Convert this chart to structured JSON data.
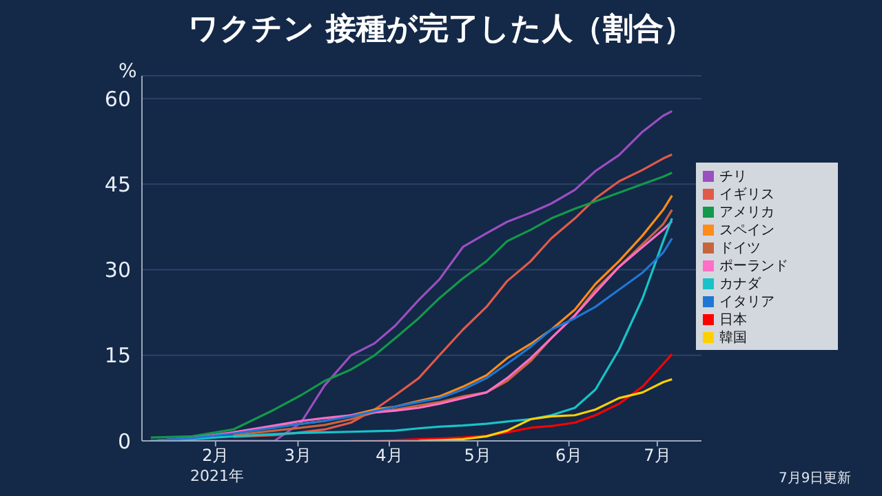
{
  "chart_data": {
    "type": "line",
    "title": "ワクチン 接種が完了した人（割合）",
    "ylabel": "%",
    "x": [
      "2021-01-10",
      "2021-01-24",
      "2021-02-07",
      "2021-02-21",
      "2021-03-02",
      "2021-03-10",
      "2021-03-19",
      "2021-03-27",
      "2021-04-03",
      "2021-04-11",
      "2021-04-18",
      "2021-04-26",
      "2021-05-04",
      "2021-05-11",
      "2021-05-19",
      "2021-05-26",
      "2021-06-03",
      "2021-06-10",
      "2021-06-18",
      "2021-06-26",
      "2021-07-03",
      "2021-07-06"
    ],
    "series": [
      {
        "name": "チリ",
        "color": "#9b4fc0",
        "values": [
          0,
          0,
          0,
          0,
          3.2,
          9.7,
          15,
          17.1,
          20.2,
          24.7,
          28.3,
          34,
          36.4,
          38.4,
          40,
          41.6,
          44,
          47.3,
          50.1,
          54.2,
          57,
          57.8
        ]
      },
      {
        "name": "イギリス",
        "color": "#e05a4a",
        "values": [
          null,
          null,
          0.7,
          1,
          1.5,
          2,
          3.2,
          5.5,
          8,
          11,
          15,
          19.5,
          23.5,
          28,
          31.5,
          35.5,
          39,
          42.5,
          45.5,
          47.5,
          49.5,
          50.2
        ]
      },
      {
        "name": "アメリカ",
        "color": "#12994a",
        "values": [
          0.6,
          0.8,
          2,
          5.5,
          8,
          10.5,
          12.5,
          15,
          18,
          21.5,
          25,
          28.5,
          31.5,
          35,
          37,
          39,
          40.7,
          42,
          43.5,
          45,
          46.3,
          47
        ]
      },
      {
        "name": "スペイン",
        "color": "#ff8c1a",
        "values": [
          null,
          null,
          1.5,
          2.5,
          3,
          3.5,
          4.5,
          5.5,
          6,
          7,
          7.8,
          9.5,
          11.5,
          14.5,
          17,
          19.5,
          23,
          27.5,
          31.5,
          36,
          40.5,
          43
        ]
      },
      {
        "name": "ドイツ",
        "color": "#c8643c",
        "values": [
          null,
          null,
          1,
          1.8,
          2.3,
          2.8,
          3.8,
          5,
          5.5,
          6.2,
          6.8,
          7.8,
          8.5,
          10.5,
          14,
          18,
          22,
          26.5,
          30.5,
          34.5,
          38,
          40.5
        ]
      },
      {
        "name": "ポーランド",
        "color": "#ff6ec7",
        "values": [
          0,
          0.5,
          1.5,
          2.7,
          3.5,
          4,
          4.5,
          5,
          5.3,
          5.8,
          6.5,
          7.5,
          8.5,
          11,
          14.5,
          18,
          22,
          26,
          30.5,
          34,
          37,
          38.5
        ]
      },
      {
        "name": "カナダ",
        "color": "#17c3c8",
        "values": [
          0,
          0.3,
          0.8,
          1.2,
          1.4,
          1.5,
          1.6,
          1.7,
          1.8,
          2.2,
          2.5,
          2.7,
          3,
          3.4,
          3.8,
          4.5,
          5.8,
          9,
          16,
          25,
          35,
          39
        ]
      },
      {
        "name": "イタリア",
        "color": "#1f77d4",
        "values": [
          0,
          0.5,
          1.3,
          2.3,
          3,
          3.5,
          4.3,
          5.2,
          6,
          6.8,
          7.5,
          9,
          11,
          13.5,
          16.5,
          19.5,
          21.5,
          23.5,
          26.5,
          29.5,
          33,
          35.5
        ]
      },
      {
        "name": "日本",
        "color": "#ff0000",
        "values": [
          null,
          null,
          null,
          null,
          null,
          null,
          0,
          0,
          0.1,
          0.3,
          0.4,
          0.6,
          0.9,
          1.5,
          2.3,
          2.6,
          3.2,
          4.5,
          6.5,
          9.5,
          13.5,
          15.2
        ]
      },
      {
        "name": "韓国",
        "color": "#ffd000",
        "values": [
          null,
          null,
          null,
          null,
          null,
          null,
          null,
          null,
          null,
          0,
          0.1,
          0.3,
          0.8,
          1.8,
          3.8,
          4.3,
          4.5,
          5.5,
          7.5,
          8.5,
          10.3,
          10.8
        ]
      }
    ],
    "xlim": [
      "2021-01-07",
      "2021-07-16"
    ],
    "xticks": [
      {
        "value": "2021-02-01",
        "label": "2月"
      },
      {
        "value": "2021-03-01",
        "label": "3月"
      },
      {
        "value": "2021-04-01",
        "label": "4月"
      },
      {
        "value": "2021-05-01",
        "label": "5月"
      },
      {
        "value": "2021-06-01",
        "label": "6月"
      },
      {
        "value": "2021-07-01",
        "label": "7月"
      }
    ],
    "ylim": [
      0,
      64
    ],
    "yticks": [
      0,
      15,
      30,
      45,
      60
    ],
    "grid": "y",
    "legend": "right",
    "annotations": [
      "2021年",
      "7月9日更新"
    ]
  }
}
